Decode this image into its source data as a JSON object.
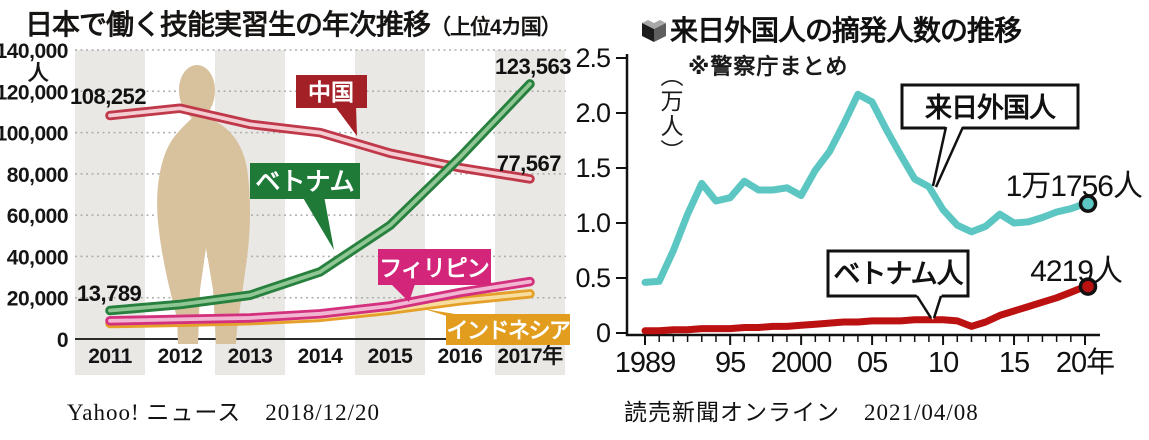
{
  "left_chart": {
    "title": "日本で働く技能実習生の年次推移",
    "title_suffix": "（上位4カ国）",
    "y_axis_unit": "人",
    "source": "Yahoo! ニュース　2018/12/20",
    "annotations": {
      "china_start": "108,252",
      "vietnam_end": "123,563",
      "china_end": "77,567",
      "vietnam_start": "13,789"
    },
    "labels": {
      "china": "中国",
      "vietnam": "ベトナム",
      "philippines": "フィリピン",
      "indonesia": "インドネシア"
    }
  },
  "right_chart": {
    "title": "来日外国人の摘発人数の推移",
    "subtitle": "※警察庁まとめ",
    "y_axis_unit": "（万人）",
    "source": "読売新聞オンライン　2021/04/08",
    "labels": {
      "foreigners": "来日外国人",
      "vietnamese": "ベトナム人"
    },
    "annotations": {
      "foreigners_end": "1万1756人",
      "vietnamese_end": "4219人"
    }
  },
  "chart_data": [
    {
      "type": "line",
      "title": "日本で働く技能実習生の年次推移（上位4カ国）",
      "categories": [
        "2011",
        "2012",
        "2013",
        "2014",
        "2015",
        "2016",
        "2017"
      ],
      "x_tick_labels": [
        "2011",
        "2012",
        "2013",
        "2014",
        "2015",
        "2016",
        "2017年"
      ],
      "ylabel": "人",
      "ylim": [
        0,
        140000
      ],
      "y_ticks": [
        0,
        20000,
        40000,
        60000,
        80000,
        100000,
        120000,
        140000
      ],
      "y_tick_labels": [
        "0",
        "20,000",
        "40,000",
        "60,000",
        "80,000",
        "100,000",
        "120,000",
        "140,000"
      ],
      "grid": "horizontal-dotted",
      "background_band_columns": [
        0,
        2,
        4,
        6
      ],
      "band_color": "#e9e8e5",
      "silhouette_color": "#d8c29e",
      "series": [
        {
          "name": "中国",
          "values": [
            108252,
            111800,
            104000,
            100000,
            90000,
            83000,
            77567
          ],
          "outer_color": "#c0394a",
          "inner_color": "#f3cdd1",
          "box_color": "#a32126"
        },
        {
          "name": "ベトナム",
          "values": [
            13789,
            16700,
            21200,
            32500,
            55000,
            88000,
            123563
          ],
          "outer_color": "#27803e",
          "inner_color": "#8fc693",
          "box_color": "#1f7a38"
        },
        {
          "name": "フィリピン",
          "values": [
            8800,
            9500,
            10200,
            12200,
            16000,
            22500,
            27800
          ],
          "outer_color": "#d3307d",
          "inner_color": "#f0b6d2",
          "box_color": "#d3267a"
        },
        {
          "name": "インドネシア",
          "values": [
            7500,
            8100,
            8900,
            10500,
            14000,
            18500,
            21900
          ],
          "outer_color": "#e5a02a",
          "inner_color": "#f7dd9e",
          "box_color": "#e29d1f"
        }
      ],
      "labeled_points": {
        "中国": [
          "108,252",
          "77,567"
        ],
        "ベトナム": [
          "13,789",
          "123,563"
        ]
      },
      "source": "Yahoo! ニュース　2018/12/20"
    },
    {
      "type": "line",
      "title": "来日外国人の摘発人数の推移",
      "note": "※警察庁まとめ",
      "x": [
        1989,
        1990,
        1991,
        1992,
        1993,
        1994,
        1995,
        1996,
        1997,
        1998,
        1999,
        2000,
        2001,
        2002,
        2003,
        2004,
        2005,
        2006,
        2007,
        2008,
        2009,
        2010,
        2011,
        2012,
        2013,
        2014,
        2015,
        2016,
        2017,
        2018,
        2019,
        2020
      ],
      "x_major_ticks": [
        1989,
        1995,
        2000,
        2005,
        2010,
        2015,
        2020
      ],
      "x_major_tick_labels": [
        "1989",
        "95",
        "2000",
        "05",
        "10",
        "15",
        "20年"
      ],
      "ylabel": "（万人）",
      "ylim": [
        0,
        2.5
      ],
      "y_ticks": [
        0,
        0.5,
        1.0,
        1.5,
        2.0,
        2.5
      ],
      "y_tick_labels": [
        "0",
        "0.5",
        "1.0",
        "1.5",
        "2.0",
        "2.5"
      ],
      "grid": "none",
      "series": [
        {
          "name": "来日外国人",
          "color": "#5cc6c2",
          "end_label": "1万1756人",
          "end_value": 1.1756,
          "values": [
            0.46,
            0.47,
            0.75,
            1.08,
            1.36,
            1.2,
            1.23,
            1.38,
            1.3,
            1.3,
            1.32,
            1.25,
            1.48,
            1.65,
            1.9,
            2.17,
            2.1,
            1.85,
            1.62,
            1.4,
            1.33,
            1.12,
            0.98,
            0.92,
            0.97,
            1.08,
            1.0,
            1.01,
            1.05,
            1.1,
            1.13,
            1.1756
          ]
        },
        {
          "name": "ベトナム人",
          "color": "#bb1111",
          "end_label": "4219人",
          "end_value": 0.4219,
          "values": [
            0.02,
            0.02,
            0.03,
            0.03,
            0.04,
            0.04,
            0.04,
            0.05,
            0.05,
            0.06,
            0.06,
            0.07,
            0.08,
            0.09,
            0.1,
            0.1,
            0.11,
            0.11,
            0.11,
            0.12,
            0.12,
            0.12,
            0.11,
            0.06,
            0.1,
            0.16,
            0.2,
            0.24,
            0.28,
            0.32,
            0.37,
            0.4219
          ]
        }
      ],
      "source": "読売新聞オンライン　2021/04/08"
    }
  ]
}
